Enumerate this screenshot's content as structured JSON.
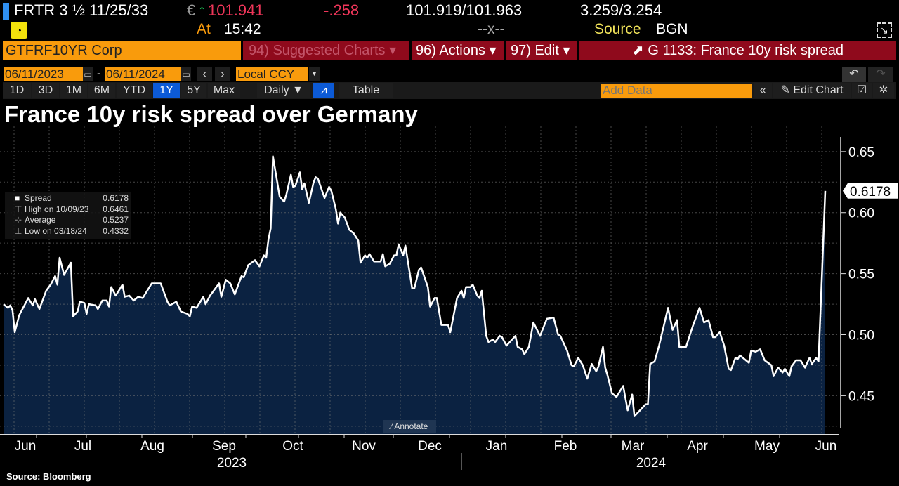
{
  "header": {
    "ticker": "FRTR 3 ½ 11/25/33",
    "currency": "€",
    "arrow": "↑",
    "price": "101.941",
    "change": "-.258",
    "bid_ask": "101.919/101.963",
    "yields": "3.259/3.254",
    "at_label": "At",
    "time": "15:42",
    "spread_sep": "--x--",
    "source_label": "Source",
    "source": "BGN"
  },
  "toolbar": {
    "security": "GTFRF10YR Corp",
    "suggested": "94) Suggested Charts ▾",
    "actions": "96) Actions ▾",
    "edit": "97) Edit ▾",
    "chart_title": "G 1133: France 10y risk spread"
  },
  "range": {
    "start": "06/11/2023",
    "end": "06/11/2024",
    "currency": "Local CCY",
    "dash": "-"
  },
  "periods": [
    "1D",
    "3D",
    "1M",
    "6M",
    "YTD",
    "1Y",
    "5Y",
    "Max"
  ],
  "active_period": "1Y",
  "frequency": "Daily ▼",
  "table_label": "Table",
  "add_data_placeholder": "Add Data",
  "edit_chart": "Edit Chart",
  "annotate": "Annotate",
  "footer": {
    "source": "Source: Bloomberg"
  },
  "colors": {
    "accent": "#f99b0c",
    "red_bar": "#8f0a1c",
    "area": "#0b2241",
    "line": "#ffffff",
    "active": "#0c5ad6"
  },
  "chart_data": {
    "type": "area",
    "title": "France 10y risk spread over Germany",
    "x_unit": "days from 06/11/2023",
    "xlim": [
      0,
      366
    ],
    "ylim": [
      0.418,
      0.662
    ],
    "yticks": [
      0.45,
      0.5,
      0.55,
      0.6,
      0.65
    ],
    "ytick_labels": [
      "0.45",
      "0.50",
      "0.55",
      "0.60",
      "0.65"
    ],
    "grid": true,
    "last_value_label": "0.6178",
    "months": [
      {
        "label": "Jun",
        "x": 10
      },
      {
        "label": "Jul",
        "x": 35
      },
      {
        "label": "Aug",
        "x": 66
      },
      {
        "label": "Sep",
        "x": 98
      },
      {
        "label": "Oct",
        "x": 129
      },
      {
        "label": "Nov",
        "x": 161
      },
      {
        "label": "Dec",
        "x": 190
      },
      {
        "label": "Jan",
        "x": 220
      },
      {
        "label": "Feb",
        "x": 250
      },
      {
        "label": "Mar",
        "x": 280
      },
      {
        "label": "Apr",
        "x": 309
      },
      {
        "label": "May",
        "x": 340
      },
      {
        "label": "Jun",
        "x": 366
      }
    ],
    "years": [
      {
        "label": "2023",
        "x": 101
      },
      {
        "label": "2024",
        "x": 288
      }
    ],
    "legend": {
      "placement": "top-left",
      "entries": [
        {
          "label": "Spread",
          "value": "0.6178"
        },
        {
          "label": "High on 10/09/23",
          "value": "0.6461"
        },
        {
          "label": "Average",
          "value": "0.5237"
        },
        {
          "label": "Low on 03/18/24",
          "value": "0.4332"
        }
      ]
    },
    "series": [
      {
        "name": "Spread",
        "points": [
          [
            0,
            0.525
          ],
          [
            2,
            0.522
          ],
          [
            3,
            0.524
          ],
          [
            4,
            0.52
          ],
          [
            5,
            0.502
          ],
          [
            7,
            0.516
          ],
          [
            11,
            0.53
          ],
          [
            13,
            0.524
          ],
          [
            14,
            0.529
          ],
          [
            16,
            0.521
          ],
          [
            19,
            0.536
          ],
          [
            21,
            0.541
          ],
          [
            23,
            0.548
          ],
          [
            24,
            0.541
          ],
          [
            25,
            0.563
          ],
          [
            27,
            0.549
          ],
          [
            30,
            0.559
          ],
          [
            31,
            0.515
          ],
          [
            33,
            0.519
          ],
          [
            34,
            0.527
          ],
          [
            36,
            0.526
          ],
          [
            37,
            0.517
          ],
          [
            38,
            0.525
          ],
          [
            41,
            0.524
          ],
          [
            42,
            0.521
          ],
          [
            44,
            0.528
          ],
          [
            46,
            0.528
          ],
          [
            47,
            0.523
          ],
          [
            48,
            0.539
          ],
          [
            50,
            0.532
          ],
          [
            53,
            0.541
          ],
          [
            54,
            0.531
          ],
          [
            56,
            0.532
          ],
          [
            58,
            0.528
          ],
          [
            60,
            0.531
          ],
          [
            62,
            0.53
          ],
          [
            66,
            0.542
          ],
          [
            68,
            0.542
          ],
          [
            70,
            0.542
          ],
          [
            73,
            0.527
          ],
          [
            74,
            0.524
          ],
          [
            77,
            0.527
          ],
          [
            79,
            0.519
          ],
          [
            82,
            0.517
          ],
          [
            83,
            0.515
          ],
          [
            84,
            0.523
          ],
          [
            86,
            0.522
          ],
          [
            89,
            0.531
          ],
          [
            90,
            0.525
          ],
          [
            92,
            0.532
          ],
          [
            96,
            0.542
          ],
          [
            97,
            0.531
          ],
          [
            99,
            0.545
          ],
          [
            101,
            0.542
          ],
          [
            103,
            0.533
          ],
          [
            106,
            0.548
          ],
          [
            107,
            0.547
          ],
          [
            109,
            0.557
          ],
          [
            112,
            0.561
          ],
          [
            114,
            0.556
          ],
          [
            116,
            0.565
          ],
          [
            117,
            0.563
          ],
          [
            118,
            0.578
          ],
          [
            119,
            0.587
          ],
          [
            120,
            0.6461
          ],
          [
            123,
            0.613
          ],
          [
            125,
            0.609
          ],
          [
            126,
            0.615
          ],
          [
            128,
            0.631
          ],
          [
            129,
            0.621
          ],
          [
            130,
            0.622
          ],
          [
            132,
            0.633
          ],
          [
            133,
            0.619
          ],
          [
            134,
            0.624
          ],
          [
            136,
            0.608
          ],
          [
            138,
            0.624
          ],
          [
            139,
            0.629
          ],
          [
            140,
            0.628
          ],
          [
            143,
            0.612
          ],
          [
            145,
            0.621
          ],
          [
            146,
            0.618
          ],
          [
            148,
            0.603
          ],
          [
            149,
            0.591
          ],
          [
            150,
            0.6
          ],
          [
            152,
            0.596
          ],
          [
            154,
            0.586
          ],
          [
            156,
            0.583
          ],
          [
            158,
            0.577
          ],
          [
            159,
            0.559
          ],
          [
            161,
            0.565
          ],
          [
            162,
            0.563
          ],
          [
            163,
            0.566
          ],
          [
            165,
            0.56
          ],
          [
            168,
            0.56
          ],
          [
            169,
            0.566
          ],
          [
            170,
            0.556
          ],
          [
            172,
            0.558
          ],
          [
            174,
            0.565
          ],
          [
            175,
            0.565
          ],
          [
            176,
            0.574
          ],
          [
            178,
            0.565
          ],
          [
            179,
            0.573
          ],
          [
            182,
            0.538
          ],
          [
            183,
            0.538
          ],
          [
            185,
            0.553
          ],
          [
            186,
            0.555
          ],
          [
            189,
            0.539
          ],
          [
            190,
            0.523
          ],
          [
            192,
            0.53
          ],
          [
            193,
            0.53
          ],
          [
            195,
            0.508
          ],
          [
            198,
            0.508
          ],
          [
            199,
            0.502
          ],
          [
            202,
            0.53
          ],
          [
            204,
            0.536
          ],
          [
            205,
            0.53
          ],
          [
            206,
            0.539
          ],
          [
            208,
            0.539
          ],
          [
            209,
            0.541
          ],
          [
            211,
            0.532
          ],
          [
            212,
            0.53
          ],
          [
            213,
            0.536
          ],
          [
            215,
            0.499
          ],
          [
            216,
            0.494
          ],
          [
            218,
            0.496
          ],
          [
            219,
            0.494
          ],
          [
            221,
            0.499
          ],
          [
            222,
            0.498
          ],
          [
            224,
            0.491
          ],
          [
            226,
            0.495
          ],
          [
            228,
            0.499
          ],
          [
            229,
            0.49
          ],
          [
            231,
            0.488
          ],
          [
            232,
            0.484
          ],
          [
            234,
            0.49
          ],
          [
            236,
            0.51
          ],
          [
            239,
            0.499
          ],
          [
            242,
            0.513
          ],
          [
            245,
            0.514
          ],
          [
            247,
            0.5
          ],
          [
            248,
            0.499
          ],
          [
            251,
            0.487
          ],
          [
            253,
            0.475
          ],
          [
            254,
            0.474
          ],
          [
            256,
            0.481
          ],
          [
            258,
            0.475
          ],
          [
            260,
            0.464
          ],
          [
            262,
            0.476
          ],
          [
            264,
            0.47
          ],
          [
            265,
            0.474
          ],
          [
            267,
            0.49
          ],
          [
            268,
            0.473
          ],
          [
            269,
            0.467
          ],
          [
            271,
            0.452
          ],
          [
            273,
            0.449
          ],
          [
            276,
            0.458
          ],
          [
            278,
            0.438
          ],
          [
            280,
            0.451
          ],
          [
            281,
            0.4332
          ],
          [
            286,
            0.443
          ],
          [
            287,
            0.443
          ],
          [
            288,
            0.476
          ],
          [
            290,
            0.478
          ],
          [
            292,
            0.491
          ],
          [
            296,
            0.522
          ],
          [
            298,
            0.504
          ],
          [
            300,
            0.512
          ],
          [
            301,
            0.49
          ],
          [
            304,
            0.49
          ],
          [
            307,
            0.507
          ],
          [
            310,
            0.522
          ],
          [
            312,
            0.51
          ],
          [
            314,
            0.512
          ],
          [
            316,
            0.498
          ],
          [
            317,
            0.498
          ],
          [
            319,
            0.502
          ],
          [
            321,
            0.491
          ],
          [
            323,
            0.472
          ],
          [
            324,
            0.471
          ],
          [
            326,
            0.481
          ],
          [
            327,
            0.48
          ],
          [
            328,
            0.483
          ],
          [
            332,
            0.477
          ],
          [
            333,
            0.487
          ],
          [
            335,
            0.486
          ],
          [
            337,
            0.488
          ],
          [
            339,
            0.479
          ],
          [
            342,
            0.475
          ],
          [
            343,
            0.466
          ],
          [
            345,
            0.473
          ],
          [
            347,
            0.469
          ],
          [
            348,
            0.472
          ],
          [
            350,
            0.466
          ],
          [
            351,
            0.474
          ],
          [
            353,
            0.479
          ],
          [
            355,
            0.479
          ],
          [
            357,
            0.473
          ],
          [
            359,
            0.481
          ],
          [
            360,
            0.476
          ],
          [
            362,
            0.481
          ],
          [
            363,
            0.478
          ],
          [
            366,
            0.6178
          ]
        ]
      }
    ]
  }
}
